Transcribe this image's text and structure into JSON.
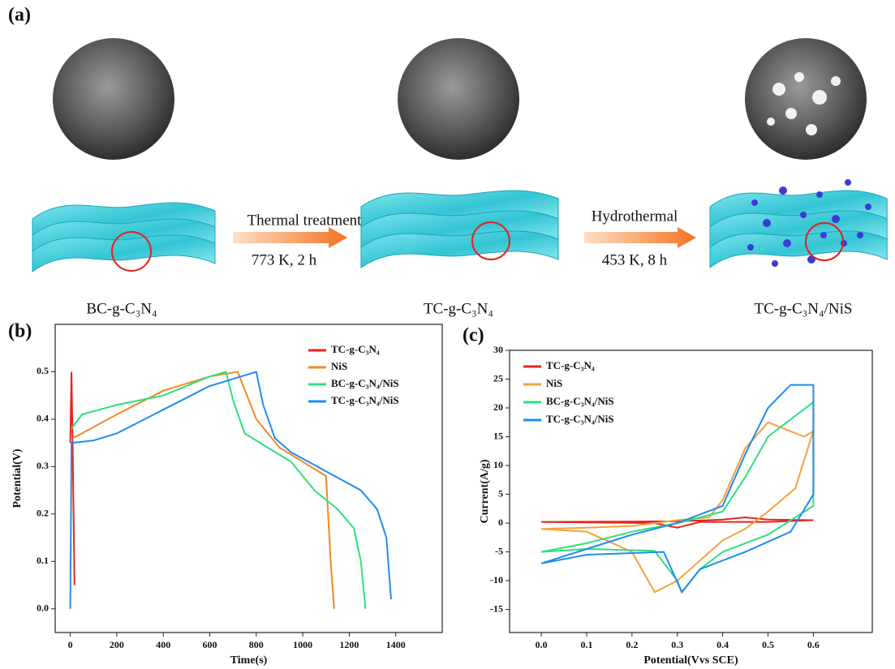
{
  "schematic": {
    "panel_label": "(a)",
    "stages": [
      "BC-g-C₃N₄",
      "TC-g-C₃N₄",
      "TC-g-C₃N₄/NiS"
    ],
    "steps": [
      {
        "name": "Thermal treatment",
        "condition": "773 K, 2 h"
      },
      {
        "name": "Hydrothermal",
        "condition": "453 K, 8 h"
      }
    ]
  },
  "chart_data": [
    {
      "type": "line",
      "panel_label": "(b)",
      "x_label": "Time(s)",
      "y_label": "Potential(V)",
      "xlim": [
        -65,
        1600
      ],
      "ylim": [
        -0.05,
        0.6
      ],
      "xticks": [
        0,
        200,
        400,
        600,
        800,
        1000,
        1200,
        1400
      ],
      "yticks": [
        {
          "value": 0,
          "label": "0.0"
        },
        0.1,
        0.2,
        0.3,
        0.4,
        0.5
      ],
      "series": [
        {
          "name": "TC-g-C₃N₄",
          "color": "#e8231f",
          "x": [
            0,
            5,
            10,
            18
          ],
          "values": [
            0.35,
            0.5,
            0.35,
            0.05
          ]
        },
        {
          "name": "NiS",
          "color": "#f28a1e",
          "x": [
            10,
            50,
            200,
            400,
            600,
            720,
            760,
            800,
            900,
            1000,
            1100,
            1120,
            1135
          ],
          "values": [
            0.36,
            0.37,
            0.41,
            0.46,
            0.49,
            0.5,
            0.45,
            0.4,
            0.34,
            0.31,
            0.28,
            0.1,
            0.0
          ]
        },
        {
          "name": "BC-g-C₃N₄/NiS",
          "color": "#2ee07a",
          "x": [
            5,
            50,
            200,
            400,
            600,
            670,
            700,
            750,
            850,
            950,
            1050,
            1150,
            1220,
            1250,
            1270
          ],
          "values": [
            0.38,
            0.41,
            0.43,
            0.45,
            0.49,
            0.5,
            0.44,
            0.37,
            0.34,
            0.31,
            0.25,
            0.21,
            0.17,
            0.1,
            0.0
          ]
        },
        {
          "name": "TC-g-C₃N₄/NiS",
          "color": "#1f8cf0",
          "x": [
            0,
            5,
            100,
            200,
            400,
            600,
            800,
            830,
            880,
            950,
            1100,
            1250,
            1320,
            1360,
            1380
          ],
          "values": [
            0.0,
            0.35,
            0.355,
            0.37,
            0.42,
            0.47,
            0.5,
            0.43,
            0.36,
            0.33,
            0.29,
            0.25,
            0.21,
            0.15,
            0.02
          ]
        }
      ]
    },
    {
      "type": "line",
      "panel_label": "(c)",
      "x_label": "Potential(Vvs SCE)",
      "y_label": "Current(A/g)",
      "xlim": [
        -0.07,
        0.73
      ],
      "ylim": [
        -19,
        30
      ],
      "xticks": [
        {
          "value": 0,
          "label": "0.0"
        },
        0.1,
        0.2,
        0.3,
        0.4,
        0.5,
        0.6
      ],
      "yticks": [
        -15,
        -10,
        -5,
        0,
        5,
        10,
        15,
        20,
        25,
        30
      ],
      "series": [
        {
          "name": "TC-g-C₃N₄",
          "color": "#e8231f",
          "x": [
            0,
            0.3,
            0.4,
            0.45,
            0.5,
            0.6,
            0.5,
            0.35,
            0.3,
            0.25,
            0
          ],
          "values": [
            0.2,
            0.3,
            0.6,
            1,
            0.6,
            0.5,
            0.2,
            0.2,
            -0.8,
            0,
            0.2
          ]
        },
        {
          "name": "NiS",
          "color": "#f5a23a",
          "x": [
            0,
            0.1,
            0.2,
            0.25,
            0.3,
            0.4,
            0.45,
            0.5,
            0.56,
            0.6,
            0.58,
            0.5,
            0.45,
            0.4,
            0.37,
            0.3,
            0.2,
            0.1,
            0
          ],
          "values": [
            -1,
            -1.5,
            -5,
            -12,
            -10,
            -3,
            -1,
            2,
            6,
            16,
            15,
            17.5,
            13,
            4,
            1,
            0.5,
            -0.5,
            -0.8,
            -1
          ]
        },
        {
          "name": "BC-g-C₃N₄/NiS",
          "color": "#2ee07a",
          "x": [
            0,
            0.1,
            0.25,
            0.3,
            0.31,
            0.35,
            0.4,
            0.5,
            0.6,
            0.6,
            0.55,
            0.5,
            0.45,
            0.4,
            0.3,
            0.2,
            0.1,
            0
          ],
          "values": [
            -5,
            -4.5,
            -4.8,
            -10,
            -12,
            -8,
            -5,
            -2,
            3,
            21,
            18,
            15,
            8,
            2,
            0,
            -1.5,
            -3.5,
            -5
          ]
        },
        {
          "name": "TC-g-C₃N₄/NiS",
          "color": "#1f8cf0",
          "x": [
            0,
            0.1,
            0.27,
            0.31,
            0.35,
            0.45,
            0.55,
            0.6,
            0.6,
            0.55,
            0.5,
            0.45,
            0.4,
            0.3,
            0.2,
            0.1,
            0
          ],
          "values": [
            -7,
            -5.5,
            -5,
            -12,
            -8,
            -5,
            -1.5,
            5,
            24,
            24,
            20,
            12,
            3,
            0,
            -2,
            -4.5,
            -7
          ]
        }
      ]
    }
  ]
}
